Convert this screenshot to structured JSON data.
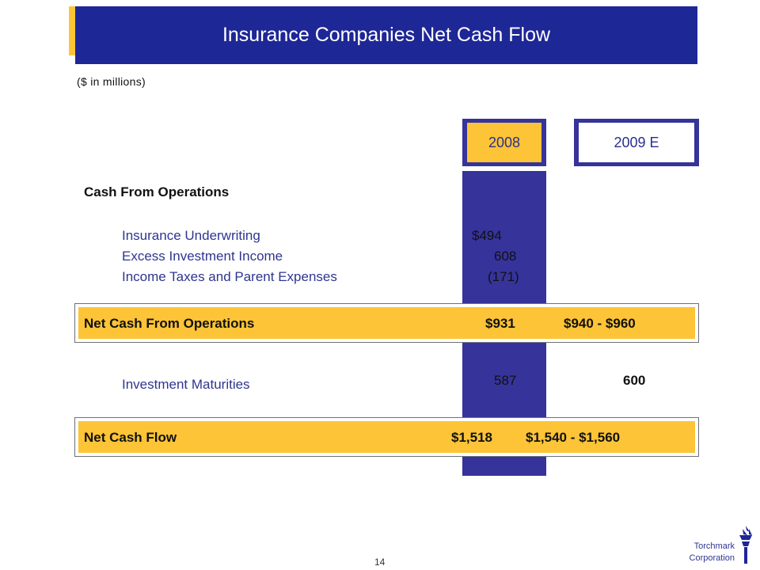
{
  "slide": {
    "title": "Insurance Companies Net Cash Flow",
    "subtitle": "($ in millions)",
    "page_number": "14"
  },
  "columns": {
    "col1": "2008",
    "col2": "2009 E"
  },
  "section": {
    "heading": "Cash From Operations",
    "rows": [
      {
        "label": "Insurance Underwriting",
        "v2008": "$494"
      },
      {
        "label": "Excess Investment Income",
        "v2008": "608"
      },
      {
        "label": "Income Taxes and Parent Expenses",
        "v2008": "(171)"
      }
    ]
  },
  "net_ops": {
    "label": "Net Cash From Operations",
    "v2008": "$931",
    "v2009": "$940 - $960"
  },
  "maturities": {
    "label": "Investment Maturities",
    "v2008": "587",
    "v2009": "600"
  },
  "net_flow": {
    "label": "Net Cash Flow",
    "v2008": "$1,518",
    "v2009": "$1,540 - $1,560"
  },
  "logo": {
    "line1": "Torchmark",
    "line2": "Corporation",
    "icon": "torch-icon"
  },
  "colors": {
    "navy": "#1E2796",
    "gold": "#FCC436",
    "band": "#36339A"
  }
}
